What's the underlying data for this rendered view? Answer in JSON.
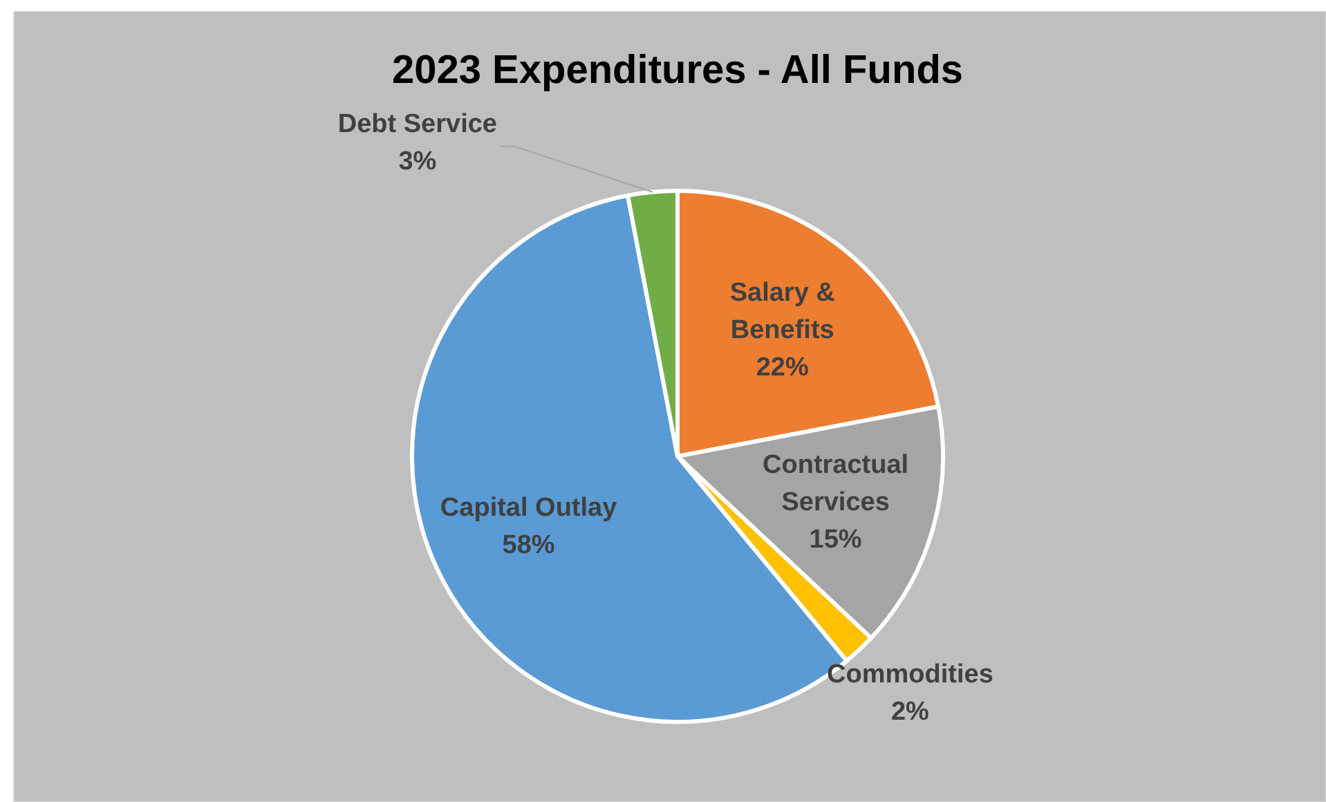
{
  "chart_data": {
    "type": "pie",
    "title": "2023 Expenditures - All Funds",
    "categories": [
      "Salary & Benefits",
      "Contractual Services",
      "Commodities",
      "Capital Outlay",
      "Debt Service"
    ],
    "values": [
      22,
      15,
      2,
      58,
      3
    ],
    "value_labels": [
      "22%",
      "15%",
      "2%",
      "58%",
      "3%"
    ],
    "colors": [
      "#ed7d31",
      "#a5a5a5",
      "#ffc000",
      "#5b9bd5",
      "#70ad47"
    ],
    "legend": false
  }
}
